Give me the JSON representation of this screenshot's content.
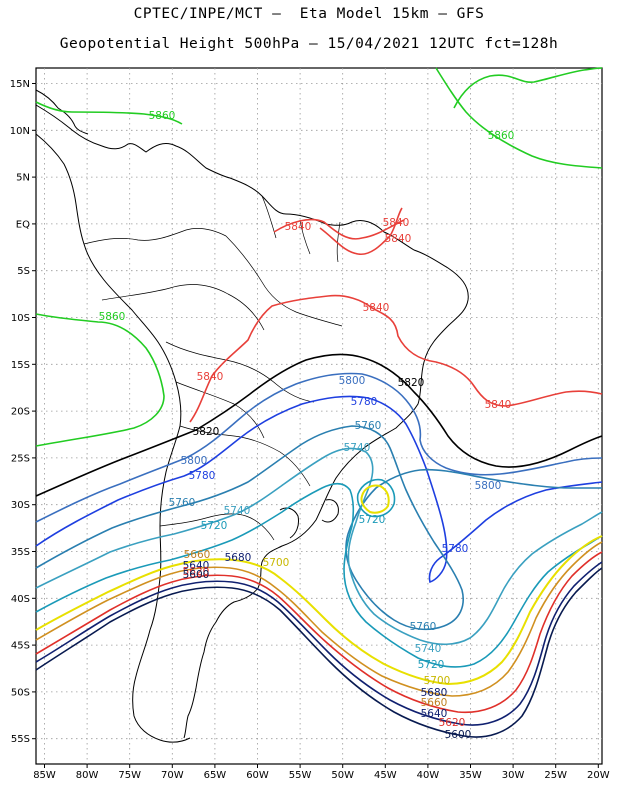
{
  "header": {
    "line1": "CPTEC/INPE/MCT –  Eta Model 15km – GFS",
    "line2": "Geopotential Height 500hPa – 15/04/2021 12UTC fct=128h"
  },
  "axes": {
    "lat_ticks": [
      "15N",
      "10N",
      "5N",
      "EQ",
      "5S",
      "10S",
      "15S",
      "20S",
      "25S",
      "30S",
      "35S",
      "40S",
      "45S",
      "50S",
      "55S"
    ],
    "lon_ticks": [
      "85W",
      "80W",
      "75W",
      "70W",
      "65W",
      "60W",
      "55W",
      "50W",
      "45W",
      "40W",
      "35W",
      "30W",
      "25W",
      "20W"
    ]
  },
  "colors": {
    "c5860": "#22cc22",
    "c5840": "#e8403a",
    "c5820": "#000000",
    "c5800": "#3a6fbf",
    "c5780": "#1e3fe0",
    "c5760": "#2a7fb0",
    "c5740": "#3aa0c0",
    "c5720": "#1a9ab8",
    "c5700": "#e8e000",
    "c5680": "#d09020",
    "c5660": "#e0302a",
    "c5640": "#102070",
    "c5600": "#081a50"
  },
  "contour_labels": [
    {
      "text": "5860",
      "color": "#22cc22"
    },
    {
      "text": "5860",
      "color": "#22cc22"
    },
    {
      "text": "5860",
      "color": "#22cc22"
    },
    {
      "text": "5840",
      "color": "#e8403a"
    },
    {
      "text": "5840",
      "color": "#e8403a"
    },
    {
      "text": "5840",
      "color": "#e8403a"
    },
    {
      "text": "5840",
      "color": "#e8403a"
    },
    {
      "text": "5840",
      "color": "#e8403a"
    },
    {
      "text": "5840",
      "color": "#e8403a"
    },
    {
      "text": "5820",
      "color": "#000000"
    },
    {
      "text": "5820",
      "color": "#000000"
    },
    {
      "text": "5800",
      "color": "#3a6fbf"
    },
    {
      "text": "5800",
      "color": "#3a6fbf"
    },
    {
      "text": "5800",
      "color": "#3a6fbf"
    },
    {
      "text": "5780",
      "color": "#1e3fe0"
    },
    {
      "text": "5780",
      "color": "#1e3fe0"
    },
    {
      "text": "5780",
      "color": "#1e3fe0"
    },
    {
      "text": "5760",
      "color": "#2a7fb0"
    },
    {
      "text": "5760",
      "color": "#2a7fb0"
    },
    {
      "text": "5760",
      "color": "#2a7fb0"
    },
    {
      "text": "5740",
      "color": "#3aa0c0"
    },
    {
      "text": "5740",
      "color": "#3aa0c0"
    },
    {
      "text": "5740",
      "color": "#3aa0c0"
    },
    {
      "text": "5720",
      "color": "#1a9ab8"
    },
    {
      "text": "5720",
      "color": "#1a9ab8"
    },
    {
      "text": "5720",
      "color": "#1a9ab8"
    },
    {
      "text": "5700",
      "color": "#c8b800"
    },
    {
      "text": "5700",
      "color": "#c8b800"
    },
    {
      "text": "5680",
      "color": "#102070"
    },
    {
      "text": "5680",
      "color": "#102070"
    },
    {
      "text": "5660",
      "color": "#c08020"
    },
    {
      "text": "5660",
      "color": "#c08020"
    },
    {
      "text": "5640",
      "color": "#102070"
    },
    {
      "text": "5640",
      "color": "#102070"
    },
    {
      "text": "5620",
      "color": "#e0302a"
    },
    {
      "text": "5620",
      "color": "#e0302a"
    },
    {
      "text": "5600",
      "color": "#081a50"
    },
    {
      "text": "5600",
      "color": "#081a50"
    }
  ]
}
